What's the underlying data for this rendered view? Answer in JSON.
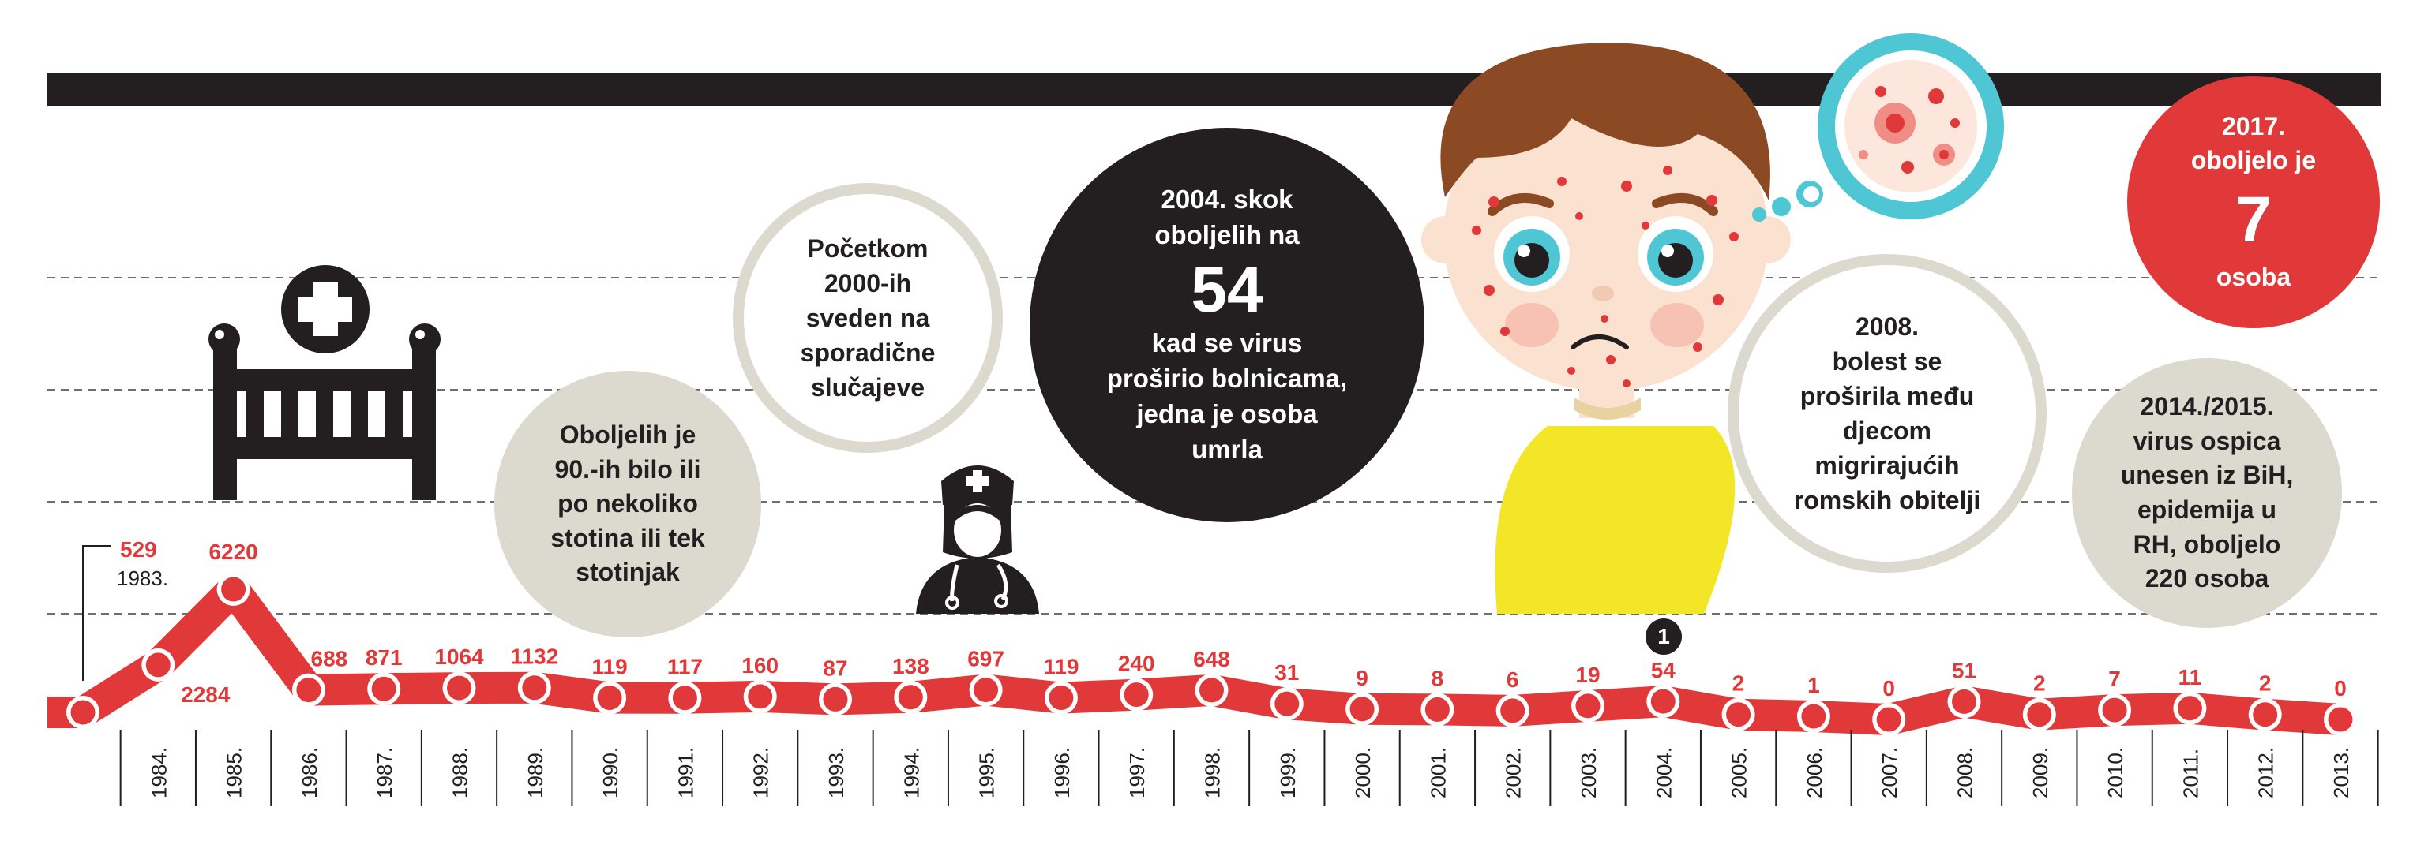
{
  "bubbles": {
    "nineties": "Oboljelih je\n90.-ih bilo ili\npo nekoliko\nstotina ili tek\nstotinjak",
    "early2000s": "Početkom\n2000-ih\nsveden na\nsporadične\nslučajeve",
    "y2004": {
      "top": "2004. skok\noboljelih na",
      "number": "54",
      "bottom": "kad se virus\nproširio bolnicama,\njedna je osoba\numrla"
    },
    "y2008": "2008.\nbolest se\nproširila među\ndjecom\nmigrirajućih\nromskih obitelji",
    "y2014": "2014./2015.\nvirus ospica\nunesen iz BiH,\nepidemija u\nRH, oboljelo\n220 osoba",
    "y2017": {
      "top": "2017.\noboljelo je",
      "number": "7",
      "bottom": "osoba"
    }
  },
  "footnote_badge": "1",
  "colors": {
    "red": "#e1393a",
    "dark": "#231f20",
    "beige": "#dcd9ce",
    "yellow": "#f3e626",
    "skin": "#fbe1cf",
    "hair": "#8c4a24",
    "teal": "#4fc6d4"
  },
  "icons": [
    "crib-icon",
    "medical-cross-icon",
    "nurse-icon",
    "sick-child-illustration",
    "virus-cell-icon"
  ],
  "chart_data": {
    "type": "line",
    "first": {
      "value": 529,
      "year": "1983."
    },
    "categories": [
      "1984.",
      "1985.",
      "1986.",
      "1987.",
      "1988.",
      "1989.",
      "1990.",
      "1991.",
      "1992.",
      "1993.",
      "1994.",
      "1995.",
      "1996.",
      "1997.",
      "1998.",
      "1999.",
      "2000.",
      "2001.",
      "2002.",
      "2003.",
      "2004.",
      "2005.",
      "2006.",
      "2007.",
      "2008.",
      "2009.",
      "2010.",
      "2011.",
      "2012.",
      "2013."
    ],
    "values": [
      2284,
      6220,
      688,
      871,
      1064,
      1132,
      119,
      117,
      160,
      87,
      138,
      697,
      119,
      240,
      648,
      31,
      9,
      8,
      6,
      19,
      54,
      2,
      1,
      0,
      51,
      2,
      7,
      11,
      2,
      0
    ],
    "grid": "dashed horizontal"
  }
}
